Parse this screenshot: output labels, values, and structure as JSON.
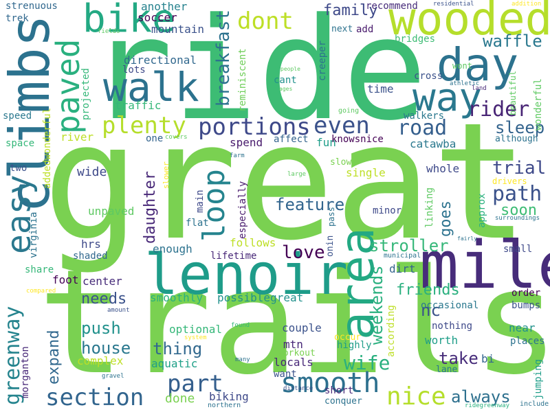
{
  "words": [
    {
      "text": "great",
      "color": "#7ad151"
    },
    {
      "text": "trails",
      "color": "#7ad151"
    },
    {
      "text": "ride",
      "color": "#3dbc74"
    },
    {
      "text": "mile",
      "color": "#472c7a"
    },
    {
      "text": "lenoir",
      "color": "#1e9c89"
    },
    {
      "text": "climbs",
      "color": "#2c728e"
    },
    {
      "text": "wooded",
      "color": "#b5de2b"
    },
    {
      "text": "day",
      "color": "#2c728e"
    },
    {
      "text": "area",
      "color": "#23a983"
    },
    {
      "text": "walk",
      "color": "#2c728e"
    },
    {
      "text": "bike",
      "color": "#23a983"
    },
    {
      "text": "way",
      "color": "#2a788e"
    },
    {
      "text": "easy",
      "color": "#2a788e"
    },
    {
      "text": "paved",
      "color": "#2ab07f"
    },
    {
      "text": "loop",
      "color": "#25848e"
    },
    {
      "text": "greenway",
      "color": "#25848e"
    },
    {
      "text": "smooth",
      "color": "#2d708e"
    },
    {
      "text": "nice",
      "color": "#b5de2b"
    },
    {
      "text": "section",
      "color": "#32658e"
    },
    {
      "text": "part",
      "color": "#355f8d"
    },
    {
      "text": "plenty",
      "color": "#b5de2b"
    },
    {
      "text": "portions",
      "color": "#3e4989"
    },
    {
      "text": "even",
      "color": "#3b528b"
    },
    {
      "text": "dont",
      "color": "#bddf26"
    },
    {
      "text": "breakfast",
      "color": "#2c728e"
    },
    {
      "text": "road",
      "color": "#355f8d"
    },
    {
      "text": "rider",
      "color": "#482475"
    },
    {
      "text": "path",
      "color": "#3b528b"
    },
    {
      "text": "waffle",
      "color": "#2a788e"
    },
    {
      "text": "sleep",
      "color": "#33638d"
    },
    {
      "text": "stroller",
      "color": "#35b779"
    },
    {
      "text": "trial",
      "color": "#3e4989"
    },
    {
      "text": "soon",
      "color": "#3dbc74"
    },
    {
      "text": "wife",
      "color": "#2ab07f"
    },
    {
      "text": "always",
      "color": "#2d708e"
    },
    {
      "text": "family",
      "color": "#3e4989"
    },
    {
      "text": "feature",
      "color": "#32658e"
    },
    {
      "text": "love",
      "color": "#440154"
    },
    {
      "text": "weekends",
      "color": "#2ab07f"
    },
    {
      "text": "friends",
      "color": "#2ab07f"
    },
    {
      "text": "take",
      "color": "#472c7a"
    },
    {
      "text": "nc",
      "color": "#3b528b"
    },
    {
      "text": "house",
      "color": "#2a788e"
    },
    {
      "text": "push",
      "color": "#21918c"
    },
    {
      "text": "thing",
      "color": "#31688e"
    },
    {
      "text": "daughter",
      "color": "#482878"
    },
    {
      "text": "needs",
      "color": "#3b528b"
    },
    {
      "text": "goes",
      "color": "#2c728e"
    },
    {
      "text": "expand",
      "color": "#31688e"
    },
    {
      "text": "done",
      "color": "#7ad151"
    },
    {
      "text": "directional",
      "color": "#31688e"
    },
    {
      "text": "traffic",
      "color": "#35b779"
    },
    {
      "text": "mountain",
      "color": "#3b528b"
    },
    {
      "text": "soccer",
      "color": "#440154"
    },
    {
      "text": "another",
      "color": "#26828e"
    },
    {
      "text": "spend",
      "color": "#481a6c"
    },
    {
      "text": "fun",
      "color": "#1f9e89"
    },
    {
      "text": "wide",
      "color": "#3e4989"
    },
    {
      "text": "unpaved",
      "color": "#5ec962"
    },
    {
      "text": "hrs",
      "color": "#3e4989"
    },
    {
      "text": "enough",
      "color": "#2c728e"
    },
    {
      "text": "center",
      "color": "#472c7a"
    },
    {
      "text": "smoothly",
      "color": "#2ab07f"
    },
    {
      "text": "possiblegreat",
      "color": "#21918c"
    },
    {
      "text": "optional",
      "color": "#35b779"
    },
    {
      "text": "aquatic",
      "color": "#1fa088"
    },
    {
      "text": "complex",
      "color": "#bddf26"
    },
    {
      "text": "biking",
      "color": "#3e4989"
    },
    {
      "text": "locals",
      "color": "#482878"
    },
    {
      "text": "mtn",
      "color": "#482878"
    },
    {
      "text": "worth",
      "color": "#1f9e89"
    },
    {
      "text": "couple",
      "color": "#3b528b"
    },
    {
      "text": "bi",
      "color": "#32658e"
    },
    {
      "text": "foot",
      "color": "#440154"
    },
    {
      "text": "morganton",
      "color": "#482878"
    },
    {
      "text": "virginia",
      "color": "#2c728e"
    },
    {
      "text": "two",
      "color": "#3b528b"
    },
    {
      "text": "addedwonderful",
      "color": "#bddf26"
    },
    {
      "text": "river",
      "color": "#bddf26"
    },
    {
      "text": "speed",
      "color": "#2a788e"
    },
    {
      "text": "space",
      "color": "#35b779"
    },
    {
      "text": "strenuous",
      "color": "#31688e"
    },
    {
      "text": "trek",
      "color": "#31688e"
    },
    {
      "text": "projected",
      "color": "#35b779"
    },
    {
      "text": "lots",
      "color": "#3e4989"
    },
    {
      "text": "one",
      "color": "#33638d"
    },
    {
      "text": "main",
      "color": "#3e4989"
    },
    {
      "text": "especially",
      "color": "#481a6c"
    },
    {
      "text": "follows",
      "color": "#bddf26"
    },
    {
      "text": "lifetime",
      "color": "#482878"
    },
    {
      "text": "shaded",
      "color": "#31688e"
    },
    {
      "text": "share",
      "color": "#35b779"
    },
    {
      "text": "flat",
      "color": "#2c728e"
    },
    {
      "text": "reminiscent",
      "color": "#6ece58"
    },
    {
      "text": "creeper",
      "color": "#2c728e"
    },
    {
      "text": "recommend",
      "color": "#472c7a"
    },
    {
      "text": "add",
      "color": "#481a6c"
    },
    {
      "text": "next",
      "color": "#2c728e"
    },
    {
      "text": "bridges",
      "color": "#3dbc74"
    },
    {
      "text": "time",
      "color": "#3b528b"
    },
    {
      "text": "cant",
      "color": "#21918c"
    },
    {
      "text": "cross",
      "color": "#3b528b"
    },
    {
      "text": "walkers",
      "color": "#2a788e"
    },
    {
      "text": "knowsnice",
      "color": "#440154"
    },
    {
      "text": "affect",
      "color": "#33638d"
    },
    {
      "text": "catawba",
      "color": "#2a788e"
    },
    {
      "text": "single",
      "color": "#bddf26"
    },
    {
      "text": "slow",
      "color": "#7ad151"
    },
    {
      "text": "whole",
      "color": "#3e4989"
    },
    {
      "text": "linking",
      "color": "#5ec962"
    },
    {
      "text": "approx",
      "color": "#2ab07f"
    },
    {
      "text": "minor",
      "color": "#3e4989"
    },
    {
      "text": "small",
      "color": "#3e4989"
    },
    {
      "text": "dirt",
      "color": "#33638d"
    },
    {
      "text": "according",
      "color": "#bddf26"
    },
    {
      "text": "order",
      "color": "#440154"
    },
    {
      "text": "bumps",
      "color": "#3b528b"
    },
    {
      "text": "occasional",
      "color": "#2a788e"
    },
    {
      "text": "nothing",
      "color": "#3e4989"
    },
    {
      "text": "near",
      "color": "#21918c"
    },
    {
      "text": "places",
      "color": "#2c728e"
    },
    {
      "text": "jumping",
      "color": "#1f9e89"
    },
    {
      "text": "lane",
      "color": "#2a788e"
    },
    {
      "text": "highly",
      "color": "#1f9e89"
    },
    {
      "text": "occur",
      "color": "#fde725"
    },
    {
      "text": "workout",
      "color": "#7ad151"
    },
    {
      "text": "want",
      "color": "#3b528b"
    },
    {
      "text": "short",
      "color": "#482878"
    },
    {
      "text": "conquer",
      "color": "#2c728e"
    },
    {
      "text": "northern",
      "color": "#2c728e"
    },
    {
      "text": "ridegreenway",
      "color": "#2ab07f"
    },
    {
      "text": "include",
      "color": "#2c728e"
    },
    {
      "text": "onin",
      "color": "#3b528b"
    },
    {
      "text": "pass",
      "color": "#2c728e"
    },
    {
      "text": "municipal",
      "color": "#2c728e"
    },
    {
      "text": "surroundings",
      "color": "#2c728e"
    },
    {
      "text": "fairly",
      "color": "#2c728e"
    },
    {
      "text": "although",
      "color": "#2c728e"
    },
    {
      "text": "wonderful",
      "color": "#5ec962"
    },
    {
      "text": "beautiful",
      "color": "#5ec962"
    },
    {
      "text": "land",
      "color": "#482878"
    },
    {
      "text": "athletic",
      "color": "#2c728e"
    },
    {
      "text": "wont",
      "color": "#5ec962"
    },
    {
      "text": "addition",
      "color": "#fde725"
    },
    {
      "text": "residential",
      "color": "#3b528b"
    },
    {
      "text": "people",
      "color": "#5ec962"
    },
    {
      "text": "ages",
      "color": "#5ec962"
    },
    {
      "text": "going",
      "color": "#5ec962"
    },
    {
      "text": "fields",
      "color": "#5ec962"
    },
    {
      "text": "covers",
      "color": "#5ec962"
    },
    {
      "text": "farm",
      "color": "#2c728e"
    },
    {
      "text": "large",
      "color": "#5ec962"
    },
    {
      "text": "distance",
      "color": "#3b528b"
    },
    {
      "text": "drivers",
      "color": "#fde725"
    },
    {
      "text": "slower",
      "color": "#fde725"
    },
    {
      "text": "amount",
      "color": "#3b528b"
    },
    {
      "text": "compared",
      "color": "#fde725"
    },
    {
      "text": "found",
      "color": "#35b779"
    },
    {
      "text": "system",
      "color": "#fde725"
    },
    {
      "text": "many",
      "color": "#2c728e"
    },
    {
      "text": "gravel",
      "color": "#2c728e"
    }
  ]
}
